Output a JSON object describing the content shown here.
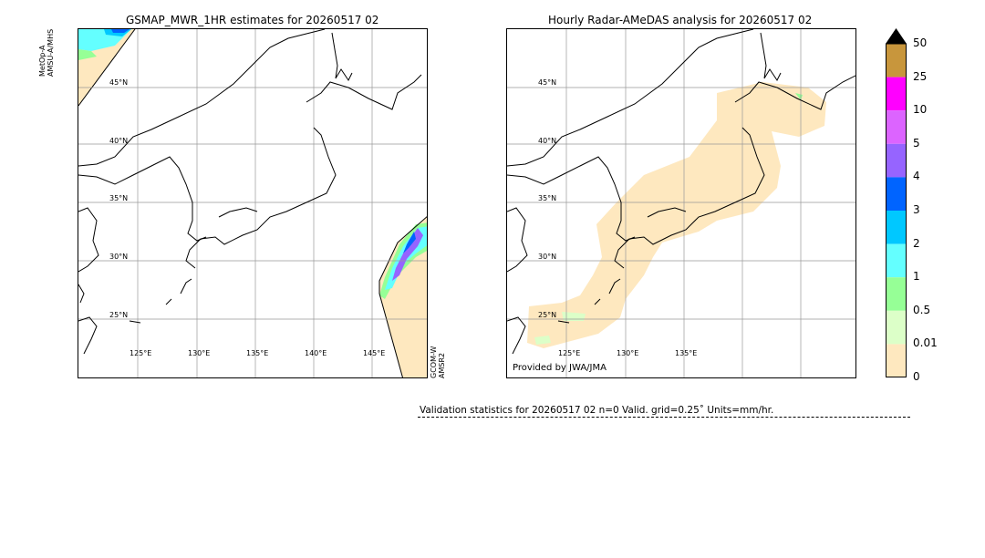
{
  "left_map": {
    "title": "GSMAP_MWR_1HR estimates for 20260517 02",
    "lat_labels": [
      "45°N",
      "40°N",
      "35°N",
      "30°N",
      "25°N"
    ],
    "lon_labels": [
      "125°E",
      "130°E",
      "135°E",
      "140°E",
      "145°E"
    ],
    "sensor_left_line1": "MetOp-A",
    "sensor_left_line2": "AMSU-A/MHS",
    "sensor_right_line1": "GCOM-W",
    "sensor_right_line2": "AMSR2"
  },
  "right_map": {
    "title": "Hourly Radar-AMeDAS analysis for 20260517 02",
    "lat_labels": [
      "45°N",
      "40°N",
      "35°N",
      "30°N",
      "25°N"
    ],
    "lon_labels": [
      "125°E",
      "130°E",
      "135°E"
    ],
    "credit": "Provided by JWA/JMA"
  },
  "colorbar": {
    "ticks": [
      "50",
      "25",
      "10",
      "5",
      "4",
      "3",
      "2",
      "1",
      "0.5",
      "0.01",
      "0"
    ],
    "colors": [
      "#c8963c",
      "#ff00ff",
      "#dc64ff",
      "#9664ff",
      "#0064ff",
      "#00c8ff",
      "#64ffff",
      "#96ff96",
      "#dcffc8",
      "#fee8bf"
    ],
    "extend_color": "#000000",
    "units": "mm/hr"
  },
  "stats": {
    "text": "Validation statistics for 20260517 02  n=0 Valid. grid=0.25˚ Units=mm/hr."
  }
}
